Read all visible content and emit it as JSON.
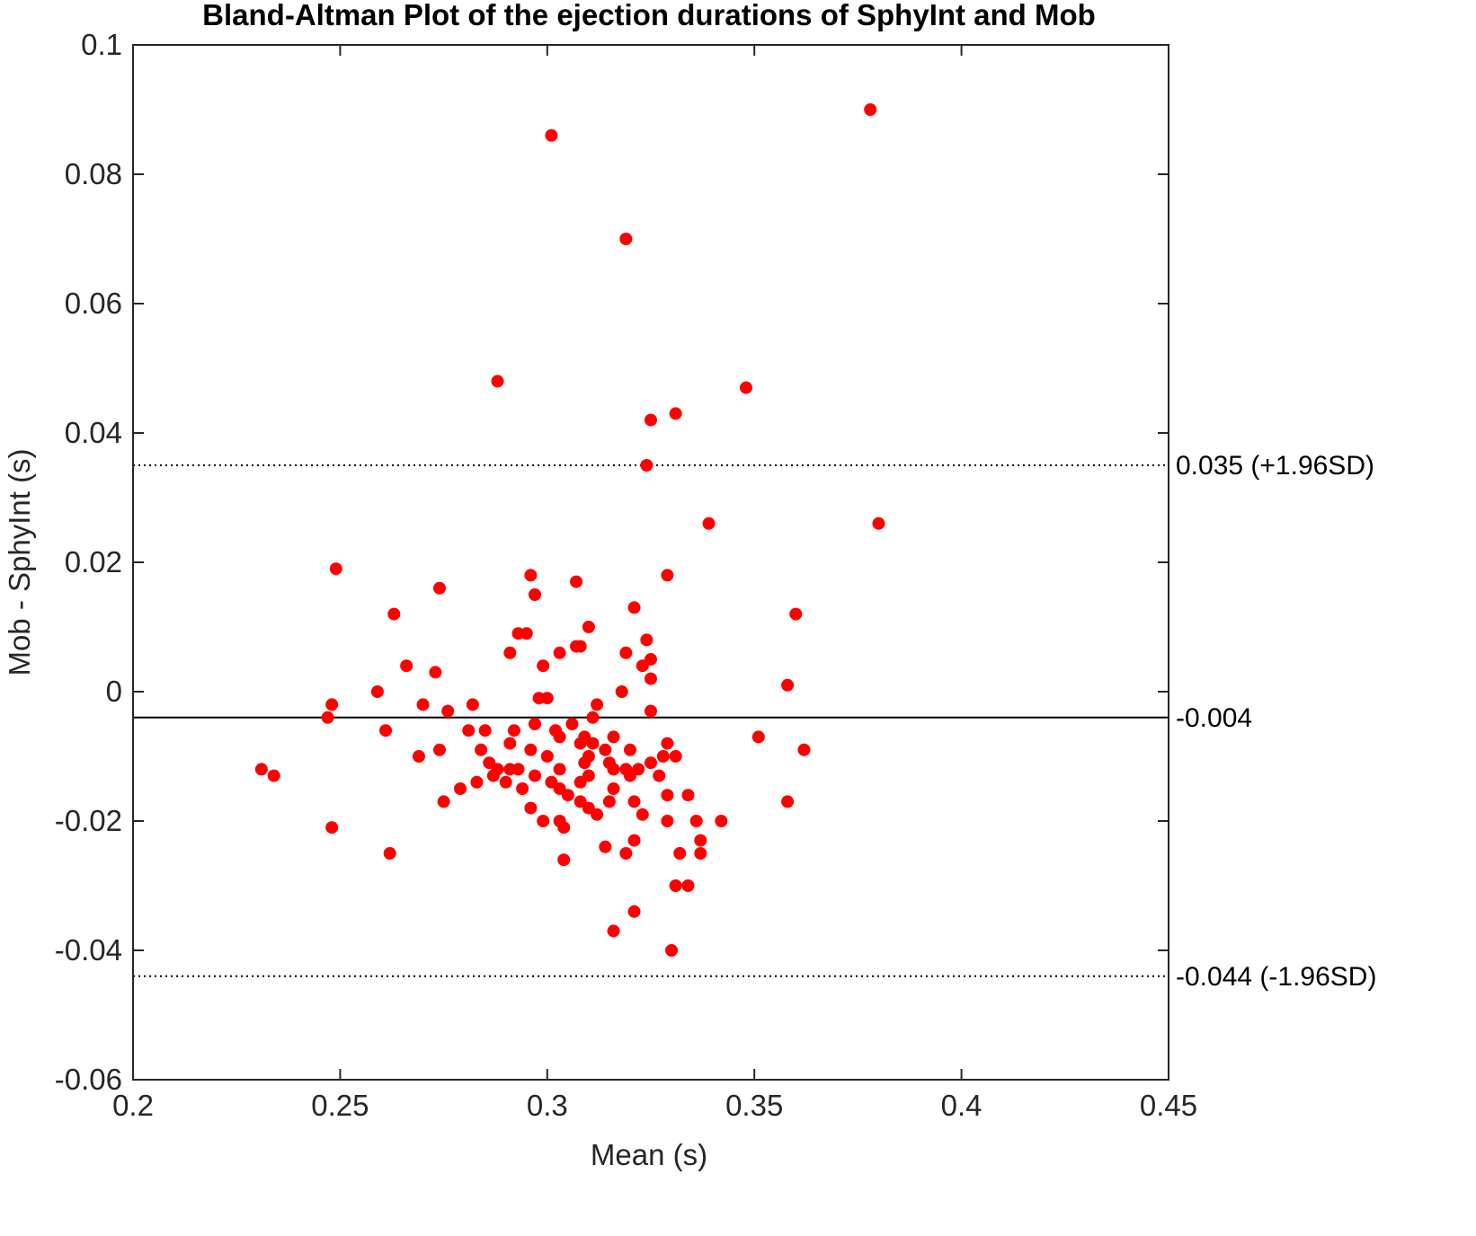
{
  "chart_data": {
    "type": "scatter",
    "title": "Bland-Altman Plot of the ejection durations of SphyInt and Mob",
    "xlabel": "Mean (s)",
    "ylabel": "Mob - SphyInt (s)",
    "xlim": [
      0.2,
      0.45
    ],
    "ylim": [
      -0.06,
      0.1
    ],
    "xticks": [
      0.2,
      0.25,
      0.3,
      0.35,
      0.4,
      0.45
    ],
    "xtick_labels": [
      "0.2",
      "0.25",
      "0.3",
      "0.35",
      "0.4",
      "0.45"
    ],
    "yticks": [
      -0.06,
      -0.04,
      -0.02,
      0,
      0.02,
      0.04,
      0.06,
      0.08,
      0.1
    ],
    "ytick_labels": [
      "-0.06",
      "-0.04",
      "-0.02",
      "0",
      "0.02",
      "0.04",
      "0.06",
      "0.08",
      "0.1"
    ],
    "grid": false,
    "marker_color": "#ff0000",
    "reference_lines": [
      {
        "y": 0.035,
        "style": "dotted",
        "label": "0.035 (+1.96SD)"
      },
      {
        "y": -0.004,
        "style": "solid",
        "label": "-0.004"
      },
      {
        "y": -0.044,
        "style": "dotted",
        "label": "-0.044 (-1.96SD)"
      }
    ],
    "points": [
      [
        0.378,
        0.09
      ],
      [
        0.301,
        0.086
      ],
      [
        0.319,
        0.07
      ],
      [
        0.288,
        0.048
      ],
      [
        0.348,
        0.047
      ],
      [
        0.331,
        0.043
      ],
      [
        0.325,
        0.042
      ],
      [
        0.324,
        0.035
      ],
      [
        0.38,
        0.026
      ],
      [
        0.339,
        0.026
      ],
      [
        0.249,
        0.019
      ],
      [
        0.296,
        0.018
      ],
      [
        0.329,
        0.018
      ],
      [
        0.274,
        0.016
      ],
      [
        0.307,
        0.017
      ],
      [
        0.297,
        0.015
      ],
      [
        0.321,
        0.013
      ],
      [
        0.263,
        0.012
      ],
      [
        0.36,
        0.012
      ],
      [
        0.31,
        0.01
      ],
      [
        0.293,
        0.009
      ],
      [
        0.295,
        0.009
      ],
      [
        0.324,
        0.008
      ],
      [
        0.307,
        0.007
      ],
      [
        0.303,
        0.006
      ],
      [
        0.308,
        0.007
      ],
      [
        0.319,
        0.006
      ],
      [
        0.291,
        0.006
      ],
      [
        0.325,
        0.005
      ],
      [
        0.323,
        0.004
      ],
      [
        0.299,
        0.004
      ],
      [
        0.266,
        0.004
      ],
      [
        0.273,
        0.003
      ],
      [
        0.325,
        0.002
      ],
      [
        0.358,
        0.001
      ],
      [
        0.259,
        0.0
      ],
      [
        0.318,
        0.0
      ],
      [
        0.298,
        -0.001
      ],
      [
        0.3,
        -0.001
      ],
      [
        0.248,
        -0.002
      ],
      [
        0.27,
        -0.002
      ],
      [
        0.282,
        -0.002
      ],
      [
        0.312,
        -0.002
      ],
      [
        0.276,
        -0.003
      ],
      [
        0.325,
        -0.003
      ],
      [
        0.247,
        -0.004
      ],
      [
        0.311,
        -0.004
      ],
      [
        0.306,
        -0.005
      ],
      [
        0.297,
        -0.005
      ],
      [
        0.285,
        -0.006
      ],
      [
        0.261,
        -0.006
      ],
      [
        0.281,
        -0.006
      ],
      [
        0.302,
        -0.006
      ],
      [
        0.292,
        -0.006
      ],
      [
        0.303,
        -0.007
      ],
      [
        0.309,
        -0.007
      ],
      [
        0.316,
        -0.007
      ],
      [
        0.351,
        -0.007
      ],
      [
        0.291,
        -0.008
      ],
      [
        0.308,
        -0.008
      ],
      [
        0.311,
        -0.008
      ],
      [
        0.329,
        -0.008
      ],
      [
        0.284,
        -0.009
      ],
      [
        0.296,
        -0.009
      ],
      [
        0.274,
        -0.009
      ],
      [
        0.314,
        -0.009
      ],
      [
        0.32,
        -0.009
      ],
      [
        0.362,
        -0.009
      ],
      [
        0.269,
        -0.01
      ],
      [
        0.3,
        -0.01
      ],
      [
        0.31,
        -0.01
      ],
      [
        0.328,
        -0.01
      ],
      [
        0.331,
        -0.01
      ],
      [
        0.286,
        -0.011
      ],
      [
        0.309,
        -0.011
      ],
      [
        0.315,
        -0.011
      ],
      [
        0.325,
        -0.011
      ],
      [
        0.231,
        -0.012
      ],
      [
        0.288,
        -0.012
      ],
      [
        0.291,
        -0.012
      ],
      [
        0.293,
        -0.012
      ],
      [
        0.303,
        -0.012
      ],
      [
        0.316,
        -0.012
      ],
      [
        0.319,
        -0.012
      ],
      [
        0.322,
        -0.012
      ],
      [
        0.234,
        -0.013
      ],
      [
        0.287,
        -0.013
      ],
      [
        0.297,
        -0.013
      ],
      [
        0.31,
        -0.013
      ],
      [
        0.32,
        -0.013
      ],
      [
        0.327,
        -0.013
      ],
      [
        0.283,
        -0.014
      ],
      [
        0.29,
        -0.014
      ],
      [
        0.301,
        -0.014
      ],
      [
        0.308,
        -0.014
      ],
      [
        0.303,
        -0.015
      ],
      [
        0.279,
        -0.015
      ],
      [
        0.294,
        -0.015
      ],
      [
        0.316,
        -0.015
      ],
      [
        0.305,
        -0.016
      ],
      [
        0.329,
        -0.016
      ],
      [
        0.334,
        -0.016
      ],
      [
        0.308,
        -0.017
      ],
      [
        0.275,
        -0.017
      ],
      [
        0.315,
        -0.017
      ],
      [
        0.321,
        -0.017
      ],
      [
        0.358,
        -0.017
      ],
      [
        0.296,
        -0.018
      ],
      [
        0.31,
        -0.018
      ],
      [
        0.323,
        -0.019
      ],
      [
        0.312,
        -0.019
      ],
      [
        0.303,
        -0.02
      ],
      [
        0.299,
        -0.02
      ],
      [
        0.329,
        -0.02
      ],
      [
        0.336,
        -0.02
      ],
      [
        0.342,
        -0.02
      ],
      [
        0.248,
        -0.021
      ],
      [
        0.304,
        -0.021
      ],
      [
        0.321,
        -0.023
      ],
      [
        0.337,
        -0.023
      ],
      [
        0.314,
        -0.024
      ],
      [
        0.319,
        -0.025
      ],
      [
        0.262,
        -0.025
      ],
      [
        0.332,
        -0.025
      ],
      [
        0.337,
        -0.025
      ],
      [
        0.304,
        -0.026
      ],
      [
        0.331,
        -0.03
      ],
      [
        0.334,
        -0.03
      ],
      [
        0.321,
        -0.034
      ],
      [
        0.316,
        -0.037
      ],
      [
        0.33,
        -0.04
      ]
    ]
  }
}
